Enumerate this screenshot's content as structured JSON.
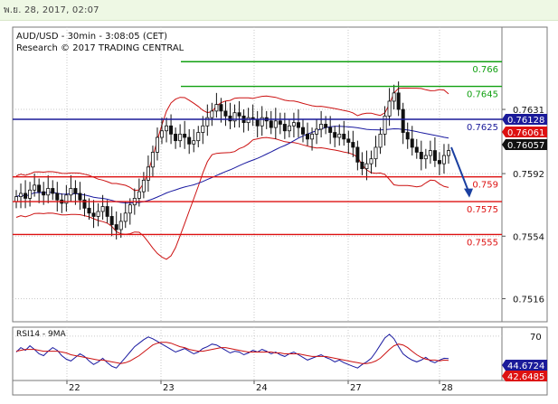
{
  "header": {
    "timestamp": "พ.ย. 28, 2017, 02:07"
  },
  "chart_info": {
    "symbol_line": "AUD/USD - 30min - 3:08:05 (CET)",
    "credit_line": "Research © 2017 TRADING CENTRAL"
  },
  "colors": {
    "support": "#dd1111",
    "resistance": "#11a011",
    "pivot": "#1a1a99",
    "bollinger": "#cc1111",
    "ma": "#1a1aa0",
    "candle": "#111111",
    "grid": "#c9c9c9",
    "arrow": "#1a3fa0",
    "rsi": "#1a1aa0",
    "rsi_ma": "#cc1111"
  },
  "chart_data": [
    {
      "type": "candlestick",
      "pair": "AUD/USD",
      "timeframe": "30min",
      "y_ticks": [
        "0.7631",
        "0.7592",
        "0.7554",
        "0.7516"
      ],
      "x_ticks": [
        "22",
        "23",
        "24",
        "27",
        "28"
      ],
      "ylim": [
        0.7502,
        0.7681
      ],
      "grid": true,
      "levels": [
        {
          "label": "0.766",
          "value": 0.766,
          "kind": "resistance"
        },
        {
          "label": "0.7645",
          "value": 0.7645,
          "kind": "resistance"
        },
        {
          "label": "0.7625",
          "value": 0.7625,
          "kind": "pivot"
        },
        {
          "label": "0.759",
          "value": 0.759,
          "kind": "support"
        },
        {
          "label": "0.7575",
          "value": 0.7575,
          "kind": "support"
        },
        {
          "label": "0.7555",
          "value": 0.7555,
          "kind": "support"
        }
      ],
      "price_tags": [
        {
          "label": "0.76128",
          "value": 0.76128,
          "style": "blue"
        },
        {
          "label": "0.76061",
          "value": 0.76061,
          "style": "red"
        },
        {
          "label": "0.76057",
          "value": 0.76057,
          "style": "black"
        }
      ],
      "close_series": [
        0.7578,
        0.758,
        0.7577,
        0.7582,
        0.7585,
        0.7581,
        0.7579,
        0.7583,
        0.758,
        0.7576,
        0.7574,
        0.7579,
        0.7583,
        0.758,
        0.7576,
        0.7571,
        0.7568,
        0.7566,
        0.7569,
        0.7572,
        0.7566,
        0.7561,
        0.7558,
        0.7563,
        0.7568,
        0.7573,
        0.7577,
        0.7581,
        0.7588,
        0.7596,
        0.7605,
        0.7614,
        0.7618,
        0.7621,
        0.7616,
        0.7612,
        0.7616,
        0.7614,
        0.761,
        0.7612,
        0.7617,
        0.7621,
        0.7626,
        0.763,
        0.7634,
        0.763,
        0.7627,
        0.7624,
        0.7629,
        0.7627,
        0.7623,
        0.7626,
        0.7625,
        0.7621,
        0.7626,
        0.7624,
        0.762,
        0.7624,
        0.7622,
        0.7618,
        0.7621,
        0.7623,
        0.762,
        0.7616,
        0.7613,
        0.7616,
        0.7619,
        0.7622,
        0.762,
        0.7617,
        0.7614,
        0.7616,
        0.7613,
        0.7611,
        0.7608,
        0.7599,
        0.7595,
        0.7598,
        0.7601,
        0.7608,
        0.7616,
        0.7627,
        0.7636,
        0.7641,
        0.7631,
        0.7617,
        0.7613,
        0.7608,
        0.7605,
        0.7601,
        0.7603,
        0.7606,
        0.76,
        0.7598,
        0.7603,
        0.7606
      ],
      "forecast_arrow": {
        "from": 0.7608,
        "to": 0.7578
      }
    },
    {
      "type": "line",
      "title": "RSI14 - 9MA",
      "y_ticks": [
        "70"
      ],
      "ylim": [
        20,
        80
      ],
      "tags": [
        {
          "label": "44.6724",
          "value": 44.6724,
          "style": "blue"
        },
        {
          "label": "42.6485",
          "value": 42.6485,
          "style": "red"
        }
      ],
      "series": [
        {
          "values": [
            52,
            57,
            54,
            59,
            55,
            50,
            48,
            53,
            57,
            54,
            48,
            44,
            42,
            46,
            50,
            47,
            42,
            38,
            41,
            45,
            40,
            36,
            34,
            40,
            46,
            52,
            58,
            62,
            66,
            69,
            67,
            64,
            61,
            58,
            55,
            52,
            54,
            56,
            53,
            50,
            52,
            56,
            58,
            61,
            60,
            57,
            54,
            51,
            53,
            52,
            49,
            51,
            54,
            52,
            55,
            53,
            50,
            52,
            49,
            47,
            50,
            52,
            49,
            46,
            43,
            45,
            47,
            49,
            46,
            44,
            41,
            43,
            40,
            38,
            36,
            34,
            38,
            41,
            45,
            52,
            60,
            68,
            72,
            67,
            58,
            50,
            46,
            43,
            41,
            43,
            46,
            42,
            40,
            43,
            45,
            44.7
          ]
        },
        {
          "values": [
            53,
            54,
            55,
            55,
            55,
            54,
            53,
            53,
            53,
            53,
            52,
            51,
            49,
            48,
            47,
            46,
            45,
            44,
            43,
            43,
            42,
            41,
            40,
            39,
            40,
            42,
            45,
            48,
            52,
            56,
            60,
            62,
            63,
            63,
            62,
            60,
            58,
            57,
            55,
            54,
            53,
            53,
            54,
            55,
            56,
            57,
            57,
            56,
            55,
            54,
            53,
            52,
            52,
            52,
            52,
            52,
            52,
            51,
            51,
            50,
            50,
            50,
            50,
            49,
            48,
            47,
            47,
            47,
            47,
            46,
            45,
            44,
            43,
            42,
            41,
            40,
            39,
            39,
            40,
            42,
            45,
            50,
            55,
            59,
            61,
            60,
            57,
            53,
            49,
            46,
            44,
            43,
            43,
            42,
            43,
            42.6
          ]
        }
      ]
    }
  ]
}
